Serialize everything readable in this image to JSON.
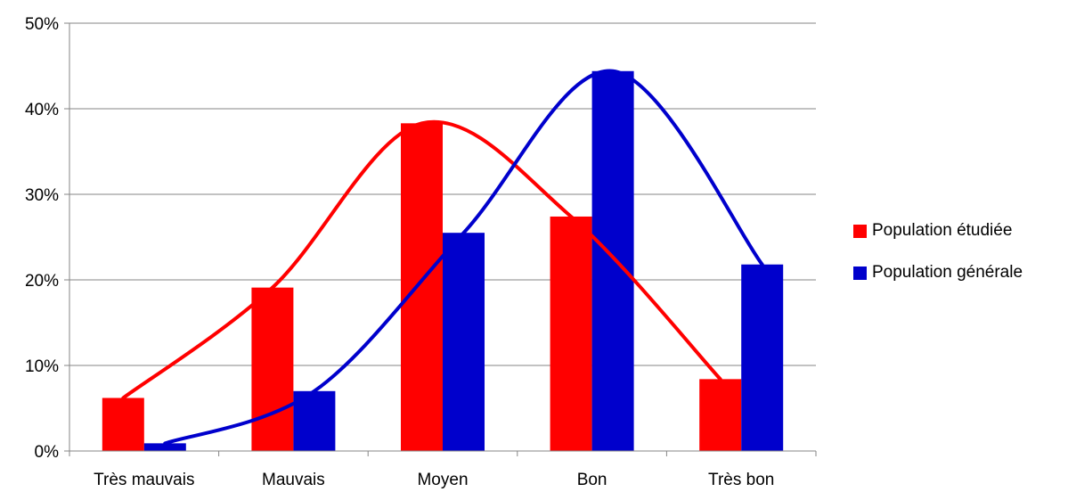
{
  "chart_data": {
    "type": "bar",
    "categories": [
      "Très mauvais",
      "Mauvais",
      "Moyen",
      "Bon",
      "Très bon"
    ],
    "series": [
      {
        "name": "Population étudiée",
        "color": "#ff0000",
        "values": [
          6.2,
          19.1,
          38.3,
          27.4,
          8.4
        ]
      },
      {
        "name": "Population générale",
        "color": "#0000cc",
        "values": [
          0.9,
          7.0,
          25.5,
          44.4,
          21.8
        ]
      }
    ],
    "ylim": [
      0,
      50
    ],
    "yticks": [
      0,
      10,
      20,
      30,
      40,
      50
    ],
    "ytick_labels": [
      "0%",
      "10%",
      "20%",
      "30%",
      "40%",
      "50%"
    ],
    "grid": true,
    "legend_position": "right",
    "smoothed_trend_lines": true
  },
  "legend": {
    "items": [
      {
        "label": "Population étudiée",
        "color": "#ff0000"
      },
      {
        "label": "Population générale",
        "color": "#0000cc"
      }
    ]
  }
}
